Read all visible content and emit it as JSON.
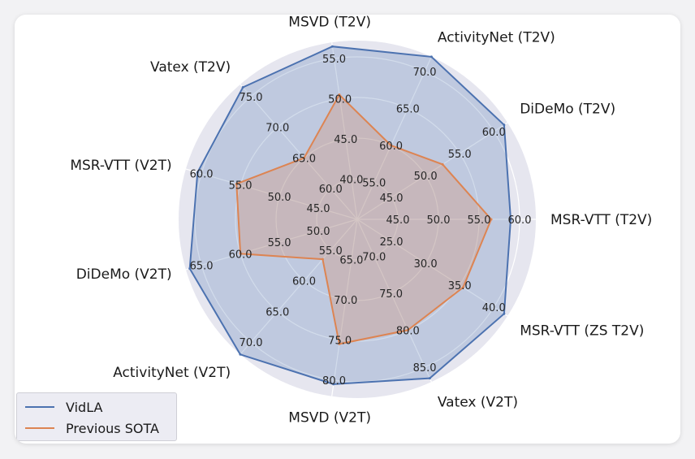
{
  "chart_data": {
    "type": "radar",
    "axes": [
      {
        "label": "MSR-VTT (T2V)",
        "ticks": [
          "45.0",
          "50.0",
          "55.0",
          "60.0"
        ],
        "range": [
          40,
          62
        ]
      },
      {
        "label": "DiDeMo (T2V)",
        "ticks": [
          "45.0",
          "50.0",
          "55.0",
          "60.0"
        ],
        "range": [
          40,
          62
        ]
      },
      {
        "label": "ActivityNet (T2V)",
        "ticks": [
          "55.0",
          "60.0",
          "65.0",
          "70.0"
        ],
        "range": [
          50,
          72
        ]
      },
      {
        "label": "MSVD (T2V)",
        "ticks": [
          "40.0",
          "45.0",
          "50.0",
          "55.0"
        ],
        "range": [
          35,
          57
        ]
      },
      {
        "label": "Vatex (T2V)",
        "ticks": [
          "60.0",
          "65.0",
          "70.0",
          "75.0"
        ],
        "range": [
          55,
          77
        ]
      },
      {
        "label": "MSR-VTT (V2T)",
        "ticks": [
          "45.0",
          "50.0",
          "55.0",
          "60.0"
        ],
        "range": [
          40,
          62
        ]
      },
      {
        "label": "DiDeMo (V2T)",
        "ticks": [
          "50.0",
          "55.0",
          "60.0",
          "65.0"
        ],
        "range": [
          45,
          67
        ]
      },
      {
        "label": "ActivityNet (V2T)",
        "ticks": [
          "55.0",
          "60.0",
          "65.0",
          "70.0"
        ],
        "range": [
          50,
          72
        ]
      },
      {
        "label": "MSVD (V2T)",
        "ticks": [
          "65.0",
          "70.0",
          "75.0",
          "80.0"
        ],
        "range": [
          60,
          82
        ]
      },
      {
        "label": "Vatex (V2T)",
        "ticks": [
          "70.0",
          "75.0",
          "80.0",
          "85.0"
        ],
        "range": [
          65,
          87
        ]
      },
      {
        "label": "MSR-VTT (ZS T2V)",
        "ticks": [
          "25.0",
          "30.0",
          "35.0",
          "40.0"
        ],
        "range": [
          20,
          42
        ]
      }
    ],
    "series": [
      {
        "name": "VidLA",
        "color": "#4c72b0",
        "values": [
          58.9,
          61.5,
          72.5,
          56.5,
          76.5,
          60.5,
          66.5,
          72.0,
          80.5,
          86.5,
          41.5
        ]
      },
      {
        "name": "Previous SOTA",
        "color": "#dd8452",
        "values": [
          56.5,
          52.5,
          60.0,
          50.5,
          65.0,
          55.5,
          60.0,
          56.5,
          75.5,
          80.0,
          35.5
        ]
      }
    ],
    "grid": true,
    "legend_position": "bottom-left"
  }
}
